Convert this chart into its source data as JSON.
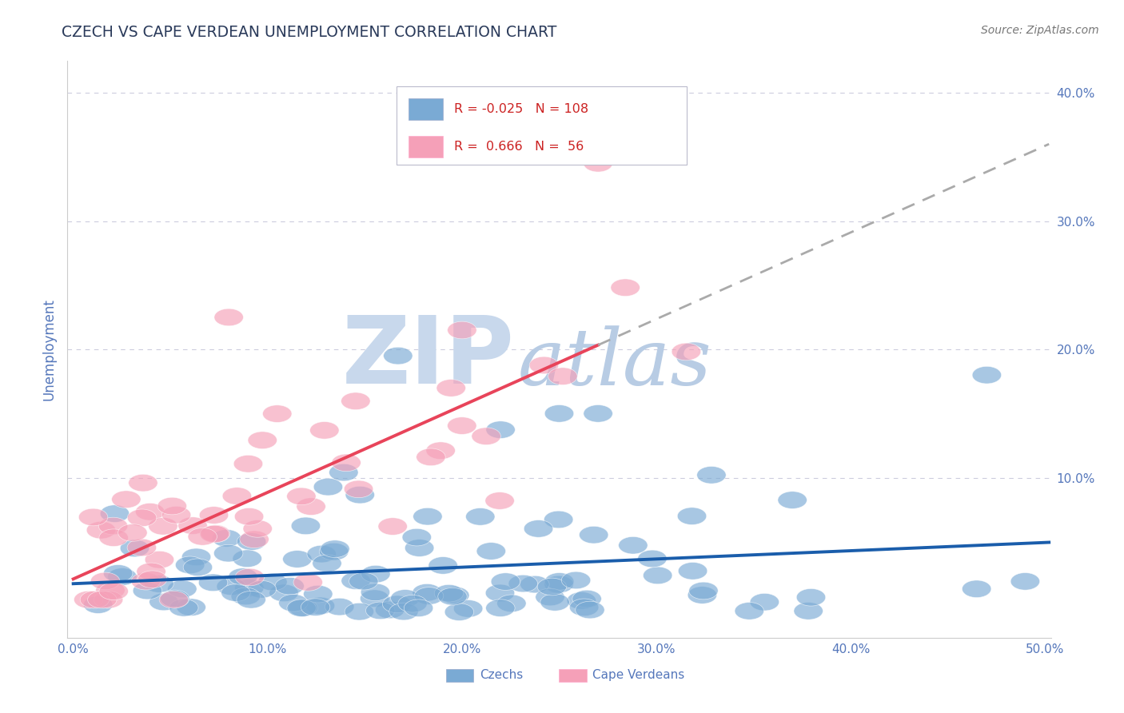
{
  "title": "CZECH VS CAPE VERDEAN UNEMPLOYMENT CORRELATION CHART",
  "source": "Source: ZipAtlas.com",
  "ylabel": "Unemployment",
  "xlim": [
    -0.003,
    0.503
  ],
  "ylim": [
    -0.025,
    0.425
  ],
  "xticks": [
    0.0,
    0.1,
    0.2,
    0.3,
    0.4,
    0.5
  ],
  "yticks": [
    0.0,
    0.1,
    0.2,
    0.3,
    0.4
  ],
  "xticklabels": [
    "0.0%",
    "10.0%",
    "20.0%",
    "30.0%",
    "40.0%",
    "50.0%"
  ],
  "yticklabels": [
    "",
    "10.0%",
    "20.0%",
    "30.0%",
    "40.0%"
  ],
  "legend_r_czech": "-0.025",
  "legend_n_czech": "108",
  "legend_r_cape": "0.666",
  "legend_n_cape": "56",
  "blue_color": "#7AAAD4",
  "pink_color": "#F5A0B8",
  "blue_line_color": "#1A5DAB",
  "pink_line_color": "#E8445A",
  "title_color": "#2A3A5A",
  "axis_label_color": "#5577BB",
  "tick_color": "#5577BB",
  "watermark_zip_color": "#C8D8EC",
  "watermark_atlas_color": "#B8CCE4",
  "grid_color": "#CCCCDD",
  "background_color": "#FFFFFF",
  "czech_r": -0.025,
  "cape_r": 0.666,
  "czech_n": 108,
  "cape_n": 56
}
